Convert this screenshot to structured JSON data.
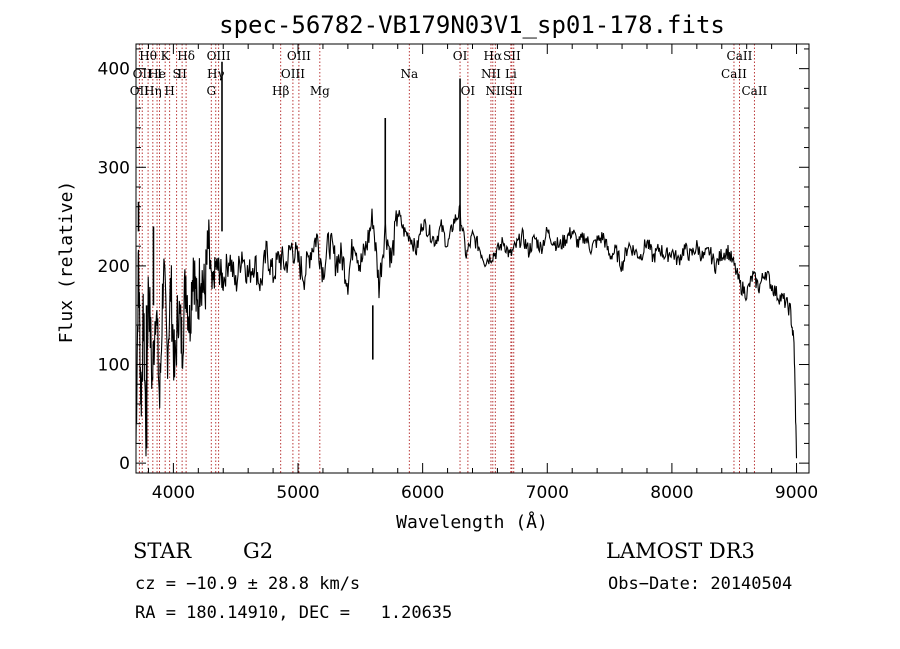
{
  "chart_data": {
    "type": "line",
    "title": "spec-56782-VB179N03V1_sp01-178.fits",
    "xlabel": "Wavelength (Å)",
    "ylabel": "Flux (relative)",
    "xlim": [
      3700,
      9100
    ],
    "ylim": [
      -10,
      425
    ],
    "x_ticks": [
      4000,
      5000,
      6000,
      7000,
      8000,
      9000
    ],
    "y_ticks": [
      0,
      100,
      200,
      300,
      400
    ],
    "grid": false,
    "series": [
      {
        "name": "flux",
        "color": "#000000",
        "x": [
          3700,
          3720,
          3740,
          3760,
          3780,
          3800,
          3830,
          3860,
          3890,
          3920,
          3950,
          3980,
          4010,
          4040,
          4070,
          4100,
          4130,
          4160,
          4190,
          4220,
          4250,
          4280,
          4310,
          4340,
          4370,
          4400,
          4450,
          4500,
          4550,
          4600,
          4650,
          4700,
          4750,
          4800,
          4850,
          4900,
          4950,
          5000,
          5050,
          5100,
          5150,
          5200,
          5250,
          5300,
          5350,
          5400,
          5450,
          5500,
          5550,
          5600,
          5650,
          5700,
          5750,
          5800,
          5850,
          5900,
          5950,
          6000,
          6050,
          6100,
          6150,
          6200,
          6250,
          6300,
          6350,
          6400,
          6450,
          6500,
          6550,
          6600,
          6650,
          6700,
          6750,
          6800,
          6850,
          6900,
          6950,
          7000,
          7050,
          7100,
          7150,
          7200,
          7250,
          7300,
          7350,
          7400,
          7450,
          7500,
          7550,
          7600,
          7650,
          7700,
          7750,
          7800,
          7850,
          7900,
          7950,
          8000,
          8050,
          8100,
          8150,
          8200,
          8250,
          8300,
          8350,
          8400,
          8450,
          8500,
          8550,
          8600,
          8650,
          8700,
          8750,
          8800,
          8850,
          8900,
          8950,
          8980,
          9000
        ],
        "y": [
          20,
          210,
          60,
          150,
          30,
          190,
          80,
          170,
          60,
          200,
          110,
          180,
          90,
          160,
          120,
          190,
          140,
          210,
          150,
          200,
          170,
          220,
          175,
          200,
          195,
          185,
          210,
          180,
          215,
          190,
          205,
          180,
          215,
          190,
          210,
          200,
          220,
          205,
          190,
          215,
          230,
          195,
          225,
          205,
          210,
          185,
          230,
          200,
          220,
          250,
          180,
          240,
          205,
          255,
          235,
          230,
          215,
          245,
          235,
          225,
          240,
          220,
          245,
          255,
          210,
          230,
          220,
          205,
          210,
          215,
          225,
          210,
          220,
          230,
          215,
          228,
          218,
          235,
          225,
          220,
          228,
          235,
          222,
          230,
          218,
          225,
          230,
          210,
          215,
          200,
          222,
          215,
          210,
          225,
          208,
          218,
          210,
          215,
          205,
          218,
          210,
          220,
          208,
          215,
          200,
          212,
          215,
          200,
          180,
          172,
          190,
          178,
          195,
          180,
          170,
          165,
          155,
          120,
          5
        ],
        "annotations": [
          {
            "x": 4390,
            "y": 407
          },
          {
            "x": 5700,
            "y": 350
          },
          {
            "x": 6300,
            "y": 390
          },
          {
            "x": 3720,
            "y": 265
          },
          {
            "x": 3785,
            "y": 15
          },
          {
            "x": 3840,
            "y": 240
          },
          {
            "x": 5600,
            "y": 105
          }
        ]
      }
    ],
    "lines": [
      {
        "x": 3727,
        "row": 2,
        "label": "OII"
      },
      {
        "x": 3750,
        "row": 1,
        "label": "OII"
      },
      {
        "x": 3797,
        "row": 0,
        "label": "Hθ"
      },
      {
        "x": 3835,
        "row": 2,
        "label": "Hη"
      },
      {
        "x": 3869,
        "row": 1,
        "label": "He"
      },
      {
        "x": 3889,
        "row": 1,
        "label": "I"
      },
      {
        "x": 3934,
        "row": 0,
        "label": "K"
      },
      {
        "x": 3970,
        "row": 2,
        "label": "H"
      },
      {
        "x": 4026,
        "row": 1,
        "label": "S"
      },
      {
        "x": 4070,
        "row": 1,
        "label": "II"
      },
      {
        "x": 4102,
        "row": 0,
        "label": "Hδ"
      },
      {
        "x": 4304,
        "row": 2,
        "label": "G"
      },
      {
        "x": 4340,
        "row": 1,
        "label": "Hγ"
      },
      {
        "x": 4363,
        "row": 0,
        "label": "OIII"
      },
      {
        "x": 4861,
        "row": 2,
        "label": "Hβ"
      },
      {
        "x": 4959,
        "row": 1,
        "label": "OIII"
      },
      {
        "x": 5007,
        "row": 0,
        "label": "OIII"
      },
      {
        "x": 5175,
        "row": 2,
        "label": "Mg"
      },
      {
        "x": 5893,
        "row": 1,
        "label": "Na"
      },
      {
        "x": 6300,
        "row": 0,
        "label": "OI"
      },
      {
        "x": 6363,
        "row": 2,
        "label": "OI"
      },
      {
        "x": 6548,
        "row": 1,
        "label": "NII"
      },
      {
        "x": 6563,
        "row": 0,
        "label": "Hα"
      },
      {
        "x": 6583,
        "row": 2,
        "label": "NII"
      },
      {
        "x": 6708,
        "row": 1,
        "label": "Li"
      },
      {
        "x": 6716,
        "row": 0,
        "label": "SII"
      },
      {
        "x": 6731,
        "row": 2,
        "label": "SII"
      },
      {
        "x": 8498,
        "row": 1,
        "label": "CaII"
      },
      {
        "x": 8542,
        "row": 0,
        "label": "CaII"
      },
      {
        "x": 8662,
        "row": 2,
        "label": "CaII"
      }
    ]
  },
  "info": {
    "object_class": "STAR",
    "subclass": "G2",
    "survey": "LAMOST DR3",
    "redshift": "cz = −10.9 ± 28.8 km/s",
    "obs_date": "Obs−Date: 20140504",
    "coords": "RA = 180.14910, DEC =   1.20635"
  },
  "colors": {
    "line_marker": "#b22222",
    "spectrum": "#000000",
    "axis": "#000000"
  }
}
